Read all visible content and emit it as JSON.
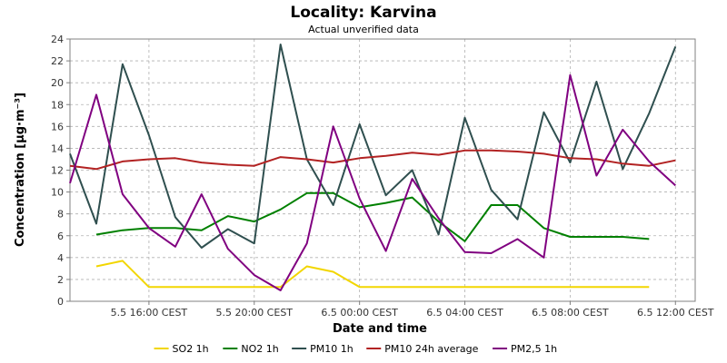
{
  "chart_data": {
    "type": "line",
    "title": "Locality: Karvina",
    "subtitle": "Actual unverified data",
    "xlabel": "Date and time",
    "ylabel": "Concentration [µg·m⁻³]",
    "ylim": [
      0,
      24
    ],
    "yticks": [
      0,
      2,
      4,
      6,
      8,
      10,
      12,
      14,
      16,
      18,
      20,
      22,
      24
    ],
    "xlim": [
      13,
      36.75
    ],
    "xticks": [
      {
        "x": 16,
        "label": "5.5 16:00 CEST"
      },
      {
        "x": 20,
        "label": "5.5 20:00 CEST"
      },
      {
        "x": 24,
        "label": "6.5 00:00 CEST"
      },
      {
        "x": 28,
        "label": "6.5 04:00 CEST"
      },
      {
        "x": 32,
        "label": "6.5 08:00 CEST"
      },
      {
        "x": 36,
        "label": "6.5 12:00 CEST"
      }
    ],
    "x_units": "hours from 5.5 00:00 CEST",
    "grid": true,
    "legend_position": "bottom",
    "series": [
      {
        "name": "SO2 1h",
        "color": "#f2d600",
        "x": [
          14,
          15,
          16,
          17,
          18,
          19,
          20,
          21,
          22,
          23,
          24,
          25,
          26,
          27,
          28,
          29,
          30,
          31,
          32,
          33,
          34,
          35
        ],
        "values": [
          3.2,
          3.7,
          1.3,
          1.3,
          1.3,
          1.3,
          1.3,
          1.3,
          3.2,
          2.7,
          1.3,
          1.3,
          1.3,
          1.3,
          1.3,
          1.3,
          1.3,
          1.3,
          1.3,
          1.3,
          1.3,
          1.3
        ]
      },
      {
        "name": "NO2 1h",
        "color": "#008000",
        "x": [
          14,
          15,
          16,
          17,
          18,
          19,
          20,
          21,
          22,
          23,
          24,
          25,
          26,
          27,
          28,
          29,
          30,
          31,
          32,
          33,
          34,
          35
        ],
        "values": [
          6.1,
          6.5,
          6.7,
          6.7,
          6.5,
          7.8,
          7.3,
          8.4,
          9.9,
          9.9,
          8.6,
          9.0,
          9.5,
          7.3,
          5.5,
          8.8,
          8.8,
          6.7,
          5.9,
          5.9,
          5.9,
          5.7
        ]
      },
      {
        "name": "PM10 1h",
        "color": "#2f4f4f",
        "x": [
          13,
          14,
          15,
          16,
          17,
          18,
          19,
          20,
          21,
          22,
          23,
          24,
          25,
          26,
          27,
          28,
          29,
          30,
          31,
          32,
          33,
          34,
          35,
          36
        ],
        "values": [
          13.5,
          7.1,
          21.7,
          15.2,
          7.7,
          4.9,
          6.6,
          5.3,
          23.5,
          13.0,
          8.8,
          16.2,
          9.7,
          12.0,
          6.1,
          16.8,
          10.2,
          7.5,
          17.3,
          12.7,
          20.1,
          12.1,
          17.2,
          23.3
        ]
      },
      {
        "name": "PM10 24h average",
        "color": "#b22222",
        "x": [
          13,
          14,
          15,
          16,
          17,
          18,
          19,
          20,
          21,
          22,
          23,
          24,
          25,
          26,
          27,
          28,
          29,
          30,
          31,
          32,
          33,
          34,
          35,
          36
        ],
        "values": [
          12.4,
          12.1,
          12.8,
          13.0,
          13.1,
          12.7,
          12.5,
          12.4,
          13.2,
          13.0,
          12.7,
          13.1,
          13.3,
          13.6,
          13.4,
          13.8,
          13.8,
          13.7,
          13.5,
          13.1,
          13.0,
          12.6,
          12.4,
          12.9
        ]
      },
      {
        "name": "PM2,5 1h",
        "color": "#800080",
        "x": [
          13,
          14,
          15,
          16,
          17,
          18,
          19,
          20,
          21,
          22,
          23,
          24,
          25,
          26,
          27,
          28,
          29,
          30,
          31,
          32,
          33,
          34,
          35,
          36
        ],
        "values": [
          10.8,
          18.9,
          9.8,
          6.7,
          5.0,
          9.8,
          4.8,
          2.4,
          1.0,
          5.3,
          16.0,
          9.4,
          4.6,
          11.2,
          7.6,
          4.5,
          4.4,
          5.7,
          4.0,
          20.7,
          11.5,
          15.7,
          12.8,
          10.6
        ]
      }
    ]
  }
}
